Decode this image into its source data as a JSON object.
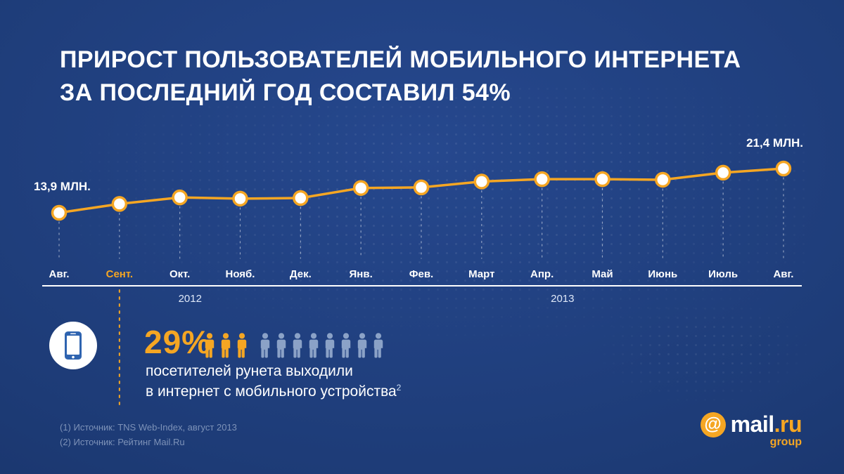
{
  "title": {
    "line1": "ПРИРОСТ ПОЛЬЗОВАТЕЛЕЙ МОБИЛЬНОГО ИНТЕРНЕТА",
    "line2": "ЗА ПОСЛЕДНИЙ ГОД СОСТАВИЛ 54%"
  },
  "chart_data": {
    "type": "line",
    "categories": [
      "Авг.",
      "Сент.",
      "Окт.",
      "Нояб.",
      "Дек.",
      "Янв.",
      "Фев.",
      "Март",
      "Апр.",
      "Май",
      "Июнь",
      "Июль",
      "Авг."
    ],
    "values": [
      13.9,
      15.4,
      16.5,
      16.3,
      16.4,
      18.1,
      18.2,
      19.2,
      19.6,
      19.6,
      19.5,
      20.7,
      21.4
    ],
    "start_label": "13,9 МЛН.",
    "end_label": "21,4 МЛН.",
    "highlighted_category": "Сент.",
    "years": [
      {
        "label": "2012",
        "position_index": 2.17
      },
      {
        "label": "2013",
        "position_index": 8.34
      }
    ],
    "ylim": [
      13,
      22
    ],
    "grid": false,
    "legend": false,
    "line_color": "#f5a623",
    "marker_fill": "#ffffff"
  },
  "stat": {
    "value": "29%",
    "line1": "посетителей рунета выходили",
    "line2": "в интернет с мобильного устройства",
    "superscript": "2",
    "people_highlighted": 3,
    "people_total": 11
  },
  "footer": {
    "sources": [
      "(1) Источник: TNS Web-Index, август 2013",
      "(2) Источник: Рейтинг Mail.Ru"
    ]
  },
  "logo": {
    "at_symbol": "@",
    "name": "mail",
    "tld": ".ru",
    "group": "group"
  },
  "colors": {
    "background": "#1d3b76",
    "accent": "#f5a623",
    "text": "#ffffff",
    "muted": "#7d92b8"
  }
}
